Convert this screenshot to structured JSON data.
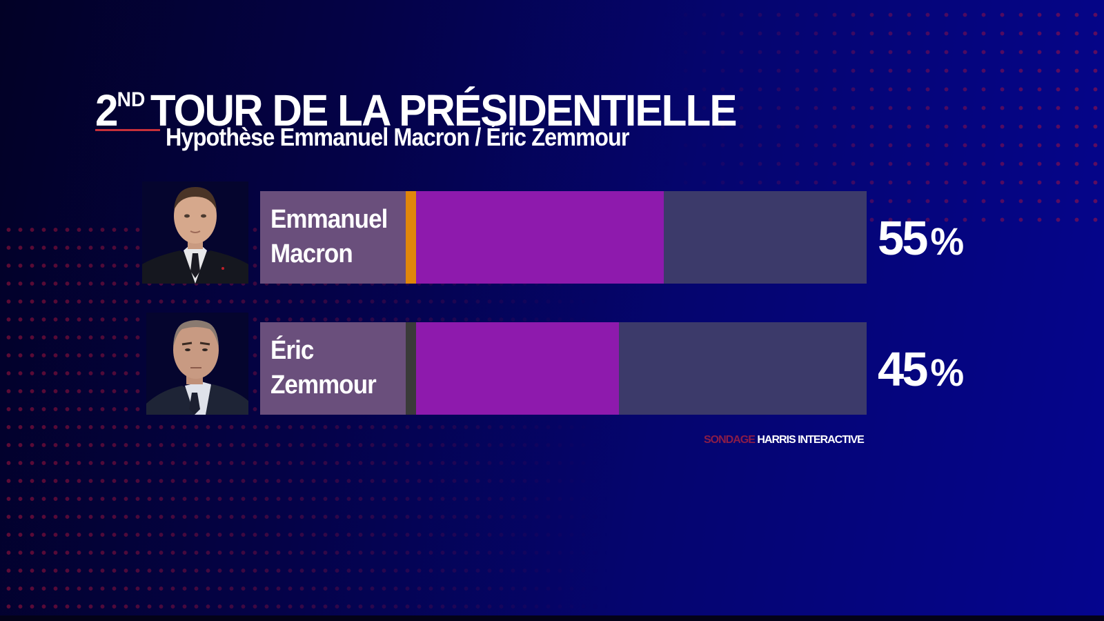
{
  "header": {
    "title_ordinal": "2",
    "title_ordinal_suffix": "ND",
    "title_rest": "TOUR DE LA PRÉSIDENTIELLE",
    "subtitle": "Hypothèse Emmanuel Macron / Éric Zemmour"
  },
  "colors": {
    "background": "#05056e",
    "accent_red": "#c8303a",
    "label_box": "#6a4f7c",
    "bar_fill": "#8e1aad",
    "bar_track": "#3c3a6a",
    "macron_strip": "#e0860a",
    "zemmour_strip": "#3a3a3a",
    "dots": "#aa143c"
  },
  "candidates": [
    {
      "first_name": "Emmanuel",
      "last_name": "Macron",
      "value": 55,
      "value_label": "55",
      "percent_symbol": "%",
      "strip_color": "#e0860a",
      "photo": "portrait-photo"
    },
    {
      "first_name": "Éric",
      "last_name": "Zemmour",
      "value": 45,
      "value_label": "45",
      "percent_symbol": "%",
      "strip_color": "#3a3a3a",
      "photo": "portrait-photo"
    }
  ],
  "source": {
    "prefix": "SONDAGE ",
    "name": "HARRIS INTERACTIVE"
  },
  "chart_data": {
    "type": "bar",
    "orientation": "horizontal",
    "title": "2ND TOUR DE LA PRÉSIDENTIELLE",
    "subtitle": "Hypothèse Emmanuel Macron / Éric Zemmour",
    "categories": [
      "Emmanuel Macron",
      "Éric Zemmour"
    ],
    "values": [
      55,
      45
    ],
    "data_labels": [
      "55%",
      "45%"
    ],
    "unit": "%",
    "xlim": [
      0,
      100
    ],
    "xlabel": "",
    "ylabel": "",
    "grid": false,
    "legend": "none",
    "source": "SONDAGE HARRIS INTERACTIVE"
  }
}
